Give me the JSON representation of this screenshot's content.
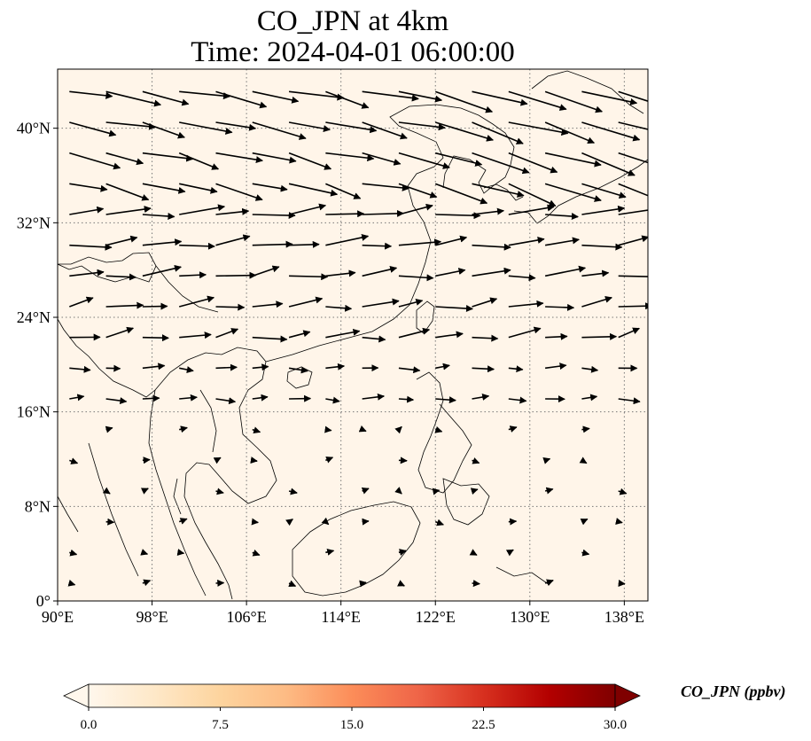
{
  "title": {
    "line1": "CO_JPN at 4km",
    "line2": "Time: 2024-04-01 06:00:00"
  },
  "map": {
    "lon_range": [
      90,
      140
    ],
    "lat_range": [
      0,
      45
    ],
    "x_ticks": [
      {
        "value": 90,
        "label": "90°E"
      },
      {
        "value": 98,
        "label": "98°E"
      },
      {
        "value": 106,
        "label": "106°E"
      },
      {
        "value": 114,
        "label": "114°E"
      },
      {
        "value": 122,
        "label": "122°E"
      },
      {
        "value": 130,
        "label": "130°E"
      },
      {
        "value": 138,
        "label": "138°E"
      }
    ],
    "y_ticks": [
      {
        "value": 0,
        "label": "0°"
      },
      {
        "value": 8,
        "label": "8°N"
      },
      {
        "value": 16,
        "label": "16°N"
      },
      {
        "value": 24,
        "label": "24°N"
      },
      {
        "value": 32,
        "label": "32°N"
      },
      {
        "value": 40,
        "label": "40°N"
      }
    ],
    "gridlines": true,
    "field_color": "#fff5e9",
    "coastline_color": "#000000",
    "arrow_color": "#000000"
  },
  "colorbar": {
    "label": "CO_JPN (ppbv)",
    "min": 0,
    "max": 30,
    "ticks": [
      {
        "value": 0,
        "label": "0.0"
      },
      {
        "value": 7.5,
        "label": "7.5"
      },
      {
        "value": 15,
        "label": "15.0"
      },
      {
        "value": 22.5,
        "label": "22.5"
      },
      {
        "value": 30,
        "label": "30.0"
      }
    ],
    "colormap": [
      "#fff7ec",
      "#fee8c8",
      "#fdd49e",
      "#fdbb84",
      "#fc8d59",
      "#ef6548",
      "#d7301f",
      "#b30000",
      "#7f0000"
    ],
    "extend": "both"
  }
}
